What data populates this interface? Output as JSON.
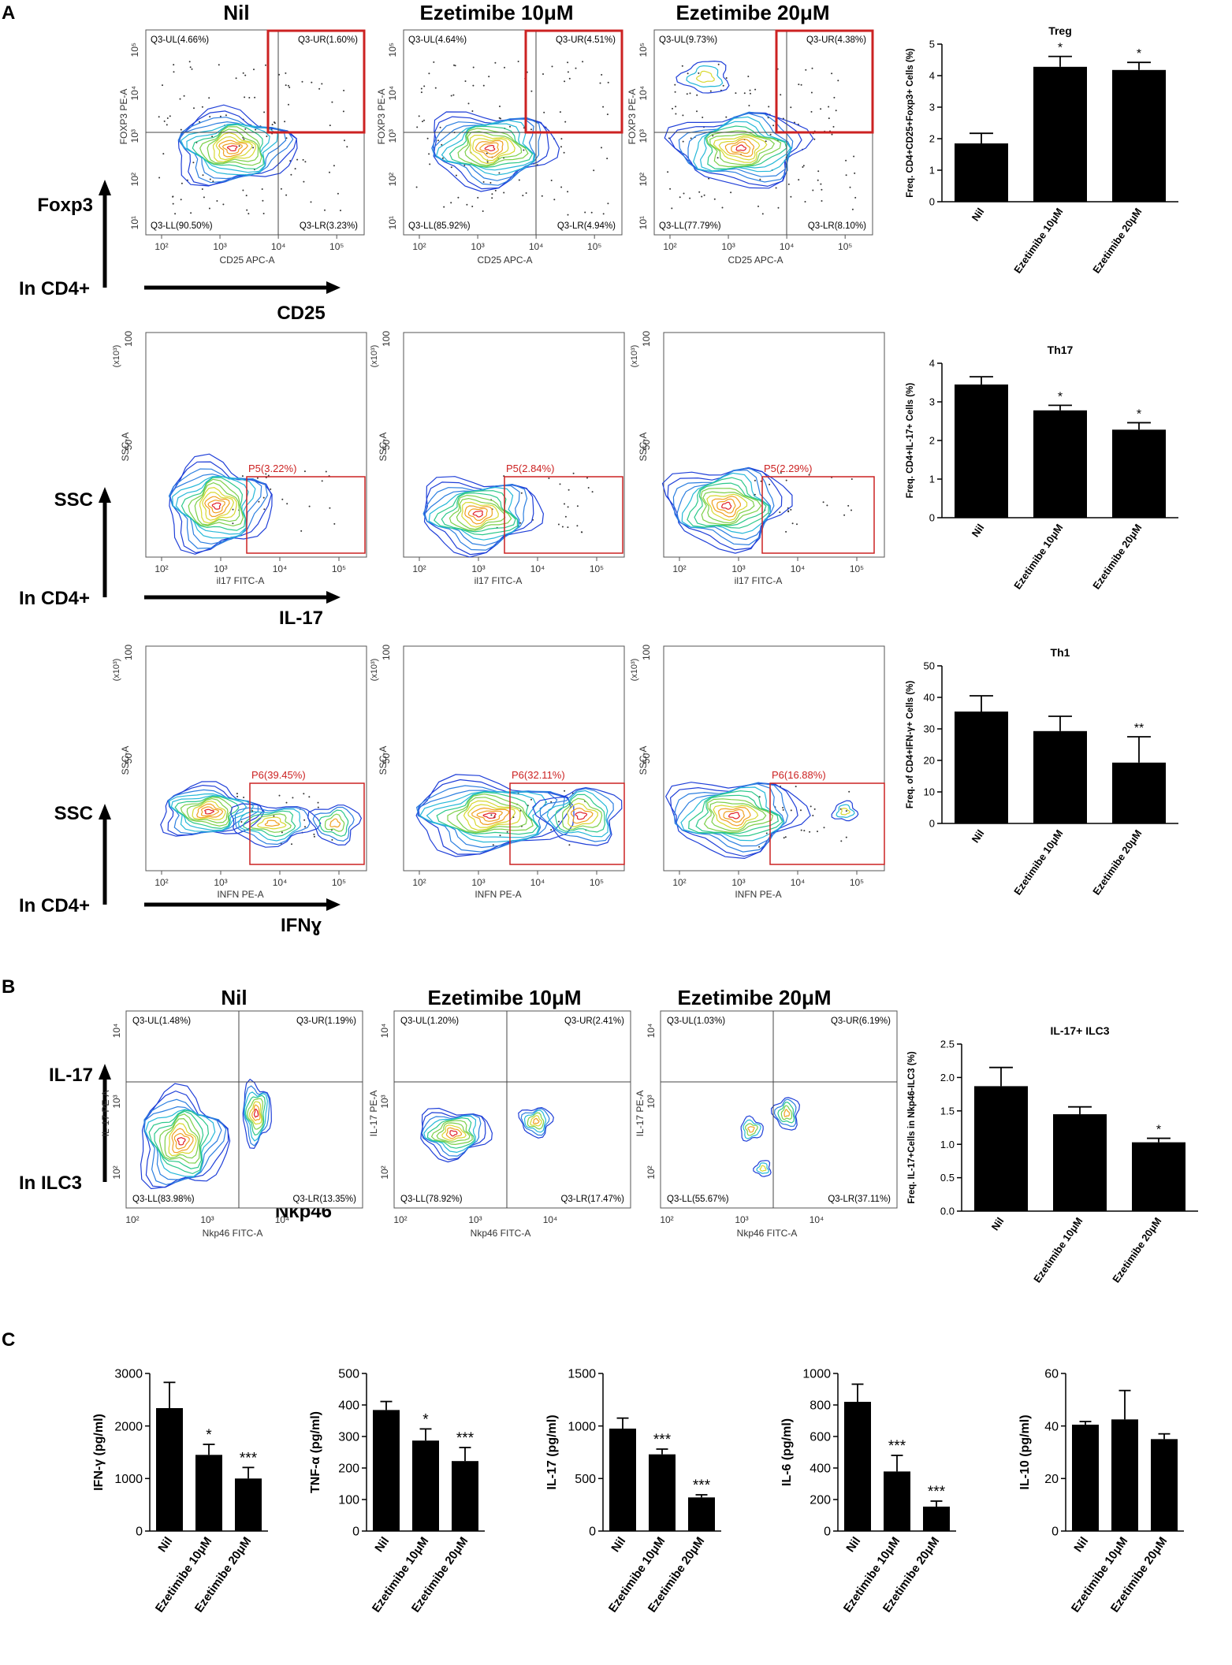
{
  "panels": {
    "A": "A",
    "B": "B",
    "C": "C"
  },
  "conditions": [
    "Nil",
    "Ezetimibe 10μM",
    "Ezetimibe 20μM"
  ],
  "rows": [
    {
      "id": "treg",
      "ylabel": "Foxp3",
      "xlabel": "CD25",
      "gate": "In CD4+",
      "plots": [
        {
          "x_axis": "CD25 APC-A",
          "y_axis": "FOXP3 PE-A",
          "quadrants": [
            "Q3-UL(4.66%)",
            "Q3-UR(1.60%)",
            "Q3-LL(90.50%)",
            "Q3-LR(3.23%)"
          ]
        },
        {
          "x_axis": "CD25 APC-A",
          "y_axis": "FOXP3 PE-A",
          "quadrants": [
            "Q3-UL(4.64%)",
            "Q3-UR(4.51%)",
            "Q3-LL(85.92%)",
            "Q3-LR(4.94%)"
          ]
        },
        {
          "x_axis": "CD25 APC-A",
          "y_axis": "FOXP3 PE-A",
          "quadrants": [
            "Q3-UL(9.73%)",
            "Q3-UR(4.38%)",
            "Q3-LL(77.79%)",
            "Q3-LR(8.10%)"
          ]
        }
      ]
    },
    {
      "id": "th17",
      "ylabel": "SSC",
      "xlabel": "IL-17",
      "gate": "In CD4+",
      "plots": [
        {
          "x_axis": "il17 FITC-A",
          "y_axis": "SSC-A",
          "gate_label": "P5(3.22%)"
        },
        {
          "x_axis": "il17 FITC-A",
          "y_axis": "SSC-A",
          "gate_label": "P5(2.84%)"
        },
        {
          "x_axis": "il17 FITC-A",
          "y_axis": "SSC-A",
          "gate_label": "P5(2.29%)"
        }
      ]
    },
    {
      "id": "th1",
      "ylabel": "SSC",
      "xlabel": "IFNɣ",
      "gate": "In CD4+",
      "plots": [
        {
          "x_axis": "INFN PE-A",
          "y_axis": "SSC-A",
          "gate_label": "P6(39.45%)"
        },
        {
          "x_axis": "INFN PE-A",
          "y_axis": "SSC-A",
          "gate_label": "P6(32.11%)"
        },
        {
          "x_axis": "INFN PE-A",
          "y_axis": "SSC-A",
          "gate_label": "P6(16.88%)"
        }
      ]
    },
    {
      "id": "ilc3",
      "ylabel": "IL-17",
      "xlabel": "Nkp46",
      "gate": "In ILC3",
      "plots": [
        {
          "x_axis": "Nkp46 FITC-A",
          "y_axis": "IL-17 PE-A",
          "quadrants": [
            "Q3-UL(1.48%)",
            "Q3-UR(1.19%)",
            "Q3-LL(83.98%)",
            "Q3-LR(13.35%)"
          ]
        },
        {
          "x_axis": "Nkp46 FITC-A",
          "y_axis": "IL-17 PE-A",
          "quadrants": [
            "Q3-UL(1.20%)",
            "Q3-UR(2.41%)",
            "Q3-LL(78.92%)",
            "Q3-LR(17.47%)"
          ]
        },
        {
          "x_axis": "Nkp46 FITC-A",
          "y_axis": "IL-17 PE-A",
          "quadrants": [
            "Q3-UL(1.03%)",
            "Q3-UR(6.19%)",
            "Q3-LL(55.67%)",
            "Q3-LR(37.11%)"
          ]
        }
      ]
    }
  ],
  "flow_axis_labels": {
    "log_ticks": [
      "10²",
      "10³",
      "10⁴",
      "10⁵"
    ],
    "log_ticks_y": [
      "10¹",
      "10²",
      "10³",
      "10⁴",
      "10⁵"
    ],
    "ilc_ticks_y": [
      "10²",
      "10³",
      "10⁴"
    ],
    "ssc_ticks": [
      "100",
      "50"
    ],
    "ssc_mult": "(x10³)"
  },
  "colors": {
    "bar": "#000000",
    "gate": "#cc2222",
    "quadrant_line": "#555555",
    "contour_cool": "#1f3fd8",
    "contour_hot": "#e0202a"
  },
  "chart_data": [
    {
      "type": "bar",
      "panel": "A",
      "title": "Treg",
      "categories": [
        "Nil",
        "Ezetimibe 10μM",
        "Ezetimibe 20μM"
      ],
      "values": [
        1.85,
        4.28,
        4.18
      ],
      "errors": [
        0.32,
        0.33,
        0.24
      ],
      "sig": [
        "",
        "*",
        "*"
      ],
      "ylabel": "Freq. CD4+CD25+Foxp3+ Cells (%)",
      "ylim": [
        0,
        5
      ],
      "yticks": [
        0,
        1,
        2,
        3,
        4,
        5
      ]
    },
    {
      "type": "bar",
      "panel": "A",
      "title": "Th17",
      "categories": [
        "Nil",
        "Ezetimibe 10μM",
        "Ezetimibe 20μM"
      ],
      "values": [
        3.45,
        2.78,
        2.28
      ],
      "errors": [
        0.2,
        0.13,
        0.18
      ],
      "sig": [
        "",
        "*",
        "*"
      ],
      "ylabel": "Freq. CD4+IL-17+ Cells (%)",
      "ylim": [
        0,
        4
      ],
      "yticks": [
        0,
        1,
        2,
        3,
        4
      ]
    },
    {
      "type": "bar",
      "panel": "A",
      "title": "Th1",
      "categories": [
        "Nil",
        "Ezetimibe 10μM",
        "Ezetimibe 20μM"
      ],
      "values": [
        35.5,
        29.3,
        19.3
      ],
      "errors": [
        5.0,
        4.7,
        8.2
      ],
      "sig": [
        "",
        "",
        "**"
      ],
      "ylabel": "Freq. of CD4+IFN-γ+ Cells (%)",
      "ylim": [
        0,
        50
      ],
      "yticks": [
        0,
        10,
        20,
        30,
        40,
        50
      ]
    },
    {
      "type": "bar",
      "panel": "B",
      "title": "IL-17+ ILC3",
      "categories": [
        "Nil",
        "Ezetimibe 10μM",
        "Ezetimibe 20μM"
      ],
      "values": [
        1.87,
        1.45,
        1.03
      ],
      "errors": [
        0.28,
        0.11,
        0.06
      ],
      "sig": [
        "",
        "",
        "*"
      ],
      "ylabel": "Freq. IL-17+Cells in Nkp46-ILC3 (%)",
      "ylim": [
        0,
        2.5
      ],
      "yticks": [
        "0.0",
        "0.5",
        "1.0",
        "1.5",
        "2.0",
        "2.5"
      ]
    },
    {
      "type": "bar",
      "panel": "C",
      "title": "",
      "categories": [
        "Nil",
        "Ezetimibe 10μM",
        "Ezetimibe 20μM"
      ],
      "values": [
        2340,
        1450,
        1000
      ],
      "errors": [
        490,
        200,
        210
      ],
      "sig": [
        "",
        "*",
        "***"
      ],
      "ylabel": "IFN-γ (pg/ml)",
      "ylim": [
        0,
        3000
      ],
      "yticks": [
        0,
        1000,
        2000,
        3000
      ]
    },
    {
      "type": "bar",
      "panel": "C",
      "title": "",
      "categories": [
        "Nil",
        "Ezetimibe 10μM",
        "Ezetimibe 20μM"
      ],
      "values": [
        384,
        287,
        222
      ],
      "errors": [
        27,
        37,
        43
      ],
      "sig": [
        "",
        "*",
        "***"
      ],
      "ylabel": "TNF-α (pg/ml)",
      "ylim": [
        0,
        500
      ],
      "yticks": [
        0,
        100,
        200,
        300,
        400,
        500
      ]
    },
    {
      "type": "bar",
      "panel": "C",
      "title": "",
      "categories": [
        "Nil",
        "Ezetimibe 10μM",
        "Ezetimibe 20μM"
      ],
      "values": [
        975,
        730,
        320
      ],
      "errors": [
        100,
        50,
        25
      ],
      "sig": [
        "",
        "***",
        "***"
      ],
      "ylabel": "IL-17 (pg/ml)",
      "ylim": [
        0,
        1500
      ],
      "yticks": [
        0,
        500,
        1000,
        1500
      ]
    },
    {
      "type": "bar",
      "panel": "C",
      "title": "",
      "categories": [
        "Nil",
        "Ezetimibe 10μM",
        "Ezetimibe 20μM"
      ],
      "values": [
        820,
        378,
        155
      ],
      "errors": [
        112,
        102,
        35
      ],
      "sig": [
        "",
        "***",
        "***"
      ],
      "ylabel": "IL-6 (pg/ml)",
      "ylim": [
        0,
        1000
      ],
      "yticks": [
        0,
        200,
        400,
        600,
        800,
        1000
      ]
    },
    {
      "type": "bar",
      "panel": "C",
      "title": "",
      "categories": [
        "Nil",
        "Ezetimibe 10μM",
        "Ezetimibe 20μM"
      ],
      "values": [
        40.5,
        42.5,
        35
      ],
      "errors": [
        1.2,
        11,
        2
      ],
      "sig": [
        "",
        "",
        ""
      ],
      "ylabel": "IL-10 (pg/ml)",
      "ylim": [
        0,
        60
      ],
      "yticks": [
        0,
        20,
        40,
        60
      ]
    }
  ]
}
